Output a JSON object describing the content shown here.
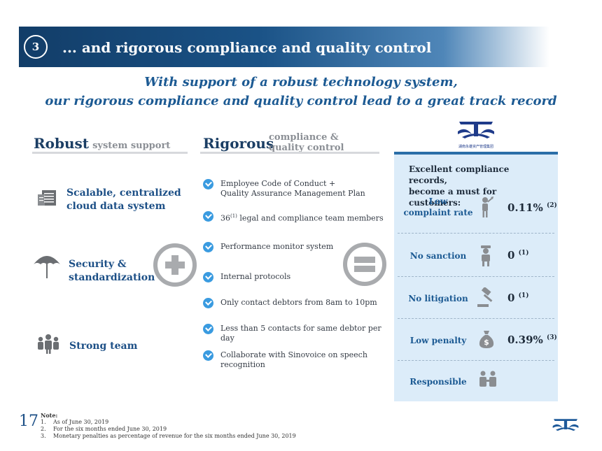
{
  "banner": {
    "number": "3",
    "title": "... and rigorous compliance and quality control"
  },
  "subtitle": {
    "line1": "With support of a robust technology system,",
    "line2": "our rigorous compliance and quality control lead to a great track record"
  },
  "robust": {
    "heading_big": "Robust",
    "heading_small": "system support",
    "items": [
      {
        "icon": "server-icon",
        "line1": "Scalable, centralized",
        "line2": "cloud data system"
      },
      {
        "icon": "umbrella-icon",
        "line1": "Security &",
        "line2": "standardization"
      },
      {
        "icon": "team-icon",
        "line1": "Strong team",
        "line2": ""
      }
    ]
  },
  "rigorous": {
    "heading_big": "Rigorous",
    "heading_small_1": "compliance &",
    "heading_small_2": "quality control",
    "items": [
      {
        "line1": "Employee Code of Conduct +",
        "line2": "Quality Assurance Management Plan"
      },
      {
        "prefix": "36",
        "sup": "(1)",
        "rest": " legal and compliance team members"
      },
      {
        "line1": "Performance monitor system"
      },
      {
        "line1": "Internal protocols"
      },
      {
        "line1": "Only contact debtors from 8am to 10pm"
      },
      {
        "line1": "Less than 5 contacts for same debtor per day"
      },
      {
        "line1": "Collaborate with Sinovoice on speech",
        "line2": "recognition"
      }
    ]
  },
  "record": {
    "logo_caption": "湖南永雄资产管理集团",
    "header_line1": "Excellent compliance records,",
    "header_line2": "become a must for customers:",
    "rows": [
      {
        "label1": "Low",
        "label2": "complaint rate",
        "icon": "customer-icon",
        "value": "0.11%",
        "note": "(2)"
      },
      {
        "label1": "No sanction",
        "label2": "",
        "icon": "officer-icon",
        "value": "0",
        "note": "(1)"
      },
      {
        "label1": "No litigation",
        "label2": "",
        "icon": "gavel-icon",
        "value": "0",
        "note": "(1)"
      },
      {
        "label1": "Low penalty",
        "label2": "",
        "icon": "money-bag-icon",
        "value": "0.39%",
        "note": "(3)"
      },
      {
        "label1": "Responsible",
        "label2": "",
        "icon": "people-icon",
        "value": "",
        "note": ""
      }
    ]
  },
  "footer": {
    "page": "17",
    "notes_title": "Note:",
    "notes": [
      {
        "n": "1.",
        "text": "As of June 30, 2019"
      },
      {
        "n": "2.",
        "text": "For the six months ended June 30, 2019"
      },
      {
        "n": "3.",
        "text": "Monetary penalties as percentage of revenue for the six months ended June 30, 2019"
      }
    ]
  },
  "colors": {
    "brand_dark": "#123d68",
    "brand_blue": "#1c5a93",
    "check_blue": "#3a9be0",
    "panel_bg": "#dcecf9",
    "gray": "#a9abae"
  }
}
